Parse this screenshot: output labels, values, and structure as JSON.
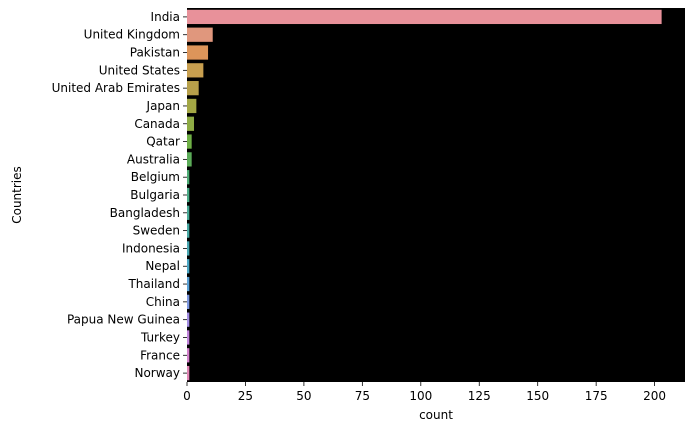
{
  "chart_data": {
    "type": "bar",
    "orientation": "horizontal",
    "title": "",
    "xlabel": "count",
    "ylabel": "Countries",
    "xlim": [
      0,
      213
    ],
    "xticks": [
      0,
      25,
      50,
      75,
      100,
      125,
      150,
      175,
      200
    ],
    "plot_background": "#000000",
    "grid": false,
    "categories": [
      "India",
      "United Kingdom",
      "Pakistan",
      "United States",
      "United Arab Emirates",
      "Japan",
      "Canada",
      "Qatar",
      "Australia",
      "Belgium",
      "Bulgaria",
      "Bangladesh",
      "Sweden",
      "Indonesia",
      "Nepal",
      "Thailand",
      "China",
      "Papua New Guinea",
      "Turkey",
      "France",
      "Norway"
    ],
    "values": [
      203,
      11,
      9,
      7,
      5,
      4,
      3,
      2,
      2,
      1,
      1,
      1,
      1,
      1,
      1,
      1,
      1,
      1,
      1,
      1,
      1
    ],
    "colors": [
      "#e8919a",
      "#e0977d",
      "#dd955a",
      "#c89f4f",
      "#b7a04a",
      "#a3a744",
      "#8eab44",
      "#6fb046",
      "#5bac58",
      "#4dac74",
      "#4aab86",
      "#48a996",
      "#48a9a3",
      "#49a8b2",
      "#4aa6c3",
      "#5aa1d6",
      "#7d98e0",
      "#a38de3",
      "#c184dc",
      "#d37fcb",
      "#e285b5"
    ]
  }
}
